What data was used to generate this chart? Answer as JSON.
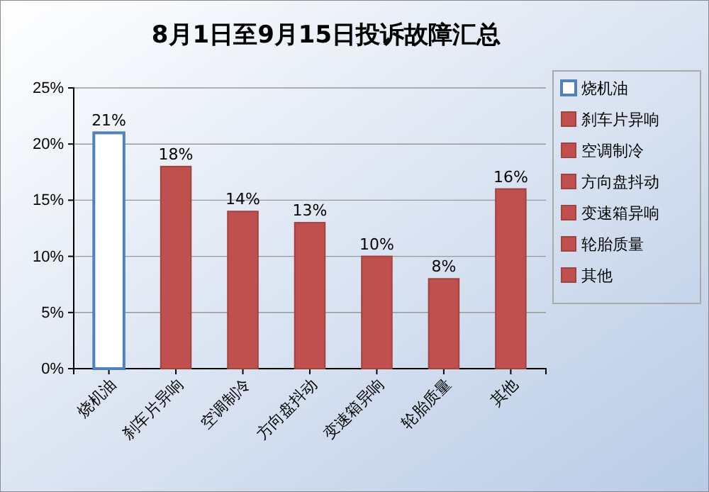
{
  "chart_data": {
    "type": "bar",
    "title": "8月1日至9月15日投诉故障汇总",
    "categories": [
      "烧机油",
      "刹车片异响",
      "空调制冷",
      "方向盘抖动",
      "变速箱异响",
      "轮胎质量",
      "其他"
    ],
    "values": [
      21,
      18,
      14,
      13,
      10,
      8,
      16
    ],
    "colors": [
      "#ffffff",
      "#c0504d",
      "#c0504d",
      "#c0504d",
      "#c0504d",
      "#c0504d",
      "#c0504d"
    ],
    "value_labels": [
      "21%",
      "18%",
      "14%",
      "13%",
      "10%",
      "8%",
      "16%"
    ],
    "ylim": [
      0,
      25
    ],
    "yticks": [
      {
        "value": 0,
        "label": "0%"
      },
      {
        "value": 5,
        "label": "5%"
      },
      {
        "value": 10,
        "label": "10%"
      },
      {
        "value": 15,
        "label": "15%"
      },
      {
        "value": 20,
        "label": "20%"
      },
      {
        "value": 25,
        "label": "25%"
      }
    ],
    "grid": "y"
  }
}
